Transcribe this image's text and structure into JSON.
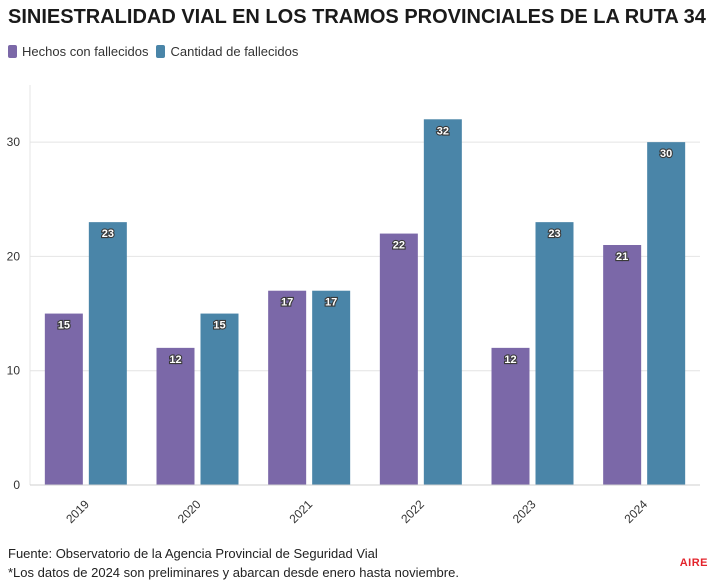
{
  "title": "SINIESTRALIDAD VIAL EN LOS TRAMOS PROVINCIALES DE LA RUTA 34",
  "legend": [
    {
      "label": "Hechos con fallecidos",
      "color": "#7b68a8"
    },
    {
      "label": "Cantidad de fallecidos",
      "color": "#4a85a8"
    }
  ],
  "chart_data": {
    "type": "bar",
    "title": "SINIESTRALIDAD VIAL EN LOS TRAMOS PROVINCIALES DE LA RUTA 34",
    "categories": [
      "2019",
      "2020",
      "2021",
      "2022",
      "2023",
      "2024"
    ],
    "series": [
      {
        "name": "Hechos con fallecidos",
        "color": "#7b68a8",
        "values": [
          15,
          12,
          17,
          22,
          12,
          21
        ]
      },
      {
        "name": "Cantidad de fallecidos",
        "color": "#4a85a8",
        "values": [
          23,
          15,
          17,
          32,
          23,
          30
        ]
      }
    ],
    "yticks": [
      0,
      10,
      20,
      30
    ],
    "ylim": [
      0,
      35
    ],
    "xlabel": "",
    "ylabel": "",
    "grid": true,
    "legend": "top-left"
  },
  "footer": {
    "source": "Fuente: Observatorio de la Agencia Provincial de Seguridad Vial",
    "note": "*Los datos de 2024 son preliminares y abarcan desde enero hasta noviembre."
  },
  "brand": "AIRE"
}
